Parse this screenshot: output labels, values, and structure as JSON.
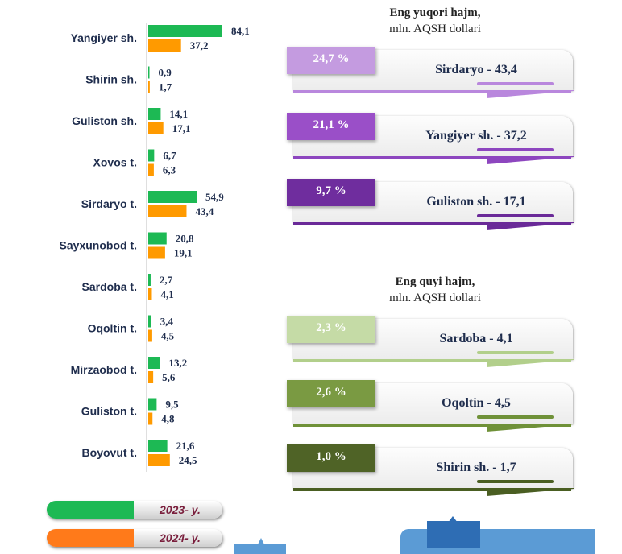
{
  "chart_data": {
    "type": "bar",
    "orientation": "horizontal",
    "categories": [
      "Yangiyer sh.",
      "Shirin sh.",
      "Guliston sh.",
      "Xovos t.",
      "Sirdaryo t.",
      "Sayxunobod t.",
      "Sardoba t.",
      "Oqoltin t.",
      "Mirzaobod t.",
      "Guliston t.",
      "Boyovut t."
    ],
    "series": [
      {
        "name": "2023- y.",
        "color": "#1db954",
        "values": [
          84.1,
          0.9,
          14.1,
          6.7,
          54.9,
          20.8,
          2.7,
          3.4,
          13.2,
          9.5,
          21.6
        ],
        "labels": [
          "84,1",
          "0,9",
          "14,1",
          "6,7",
          "54,9",
          "20,8",
          "2,7",
          "3,4",
          "13,2",
          "9,5",
          "21,6"
        ]
      },
      {
        "name": "2024- y.",
        "color": "#ff9a00",
        "values": [
          37.2,
          1.7,
          17.1,
          6.3,
          43.4,
          19.1,
          4.1,
          4.5,
          5.6,
          4.8,
          24.5
        ],
        "labels": [
          "37,2",
          "1,7",
          "17,1",
          "6,3",
          "43,4",
          "19,1",
          "4,1",
          "4,5",
          "5,6",
          "4,8",
          "24,5"
        ]
      }
    ],
    "xlim": [
      0,
      90
    ],
    "grid": false,
    "legend": "bottom-left"
  },
  "top_panel": {
    "title": "Eng yuqori hajm,",
    "unit": "mln. AQSH dollari",
    "items": [
      {
        "percent": "24,7 %",
        "label": "Sirdaryo - 43,4",
        "color": "#c49be0",
        "accent": "#b987dd"
      },
      {
        "percent": "21,1 %",
        "label": "Yangiyer sh. - 37,2",
        "color": "#9a4fc8",
        "accent": "#8d46bf"
      },
      {
        "percent": "9,7 %",
        "label": "Guliston sh.  - 17,1",
        "color": "#6f2d9e",
        "accent": "#6a2a98"
      }
    ]
  },
  "bottom_panel": {
    "title": "Eng quyi hajm,",
    "unit": "mln. AQSH dollari",
    "items": [
      {
        "percent": "2,3 %",
        "label": "Sardoba -  4,1",
        "color": "#c5dba6",
        "accent": "#b2cf8b"
      },
      {
        "percent": "2,6 %",
        "label": "Oqoltin - 4,5",
        "color": "#7a9a42",
        "accent": "#6f9138"
      },
      {
        "percent": "1,0 %",
        "label": "Shirin sh. - 1,7",
        "color": "#4f6326",
        "accent": "#4a5e22"
      }
    ]
  },
  "legend": {
    "items": [
      {
        "label": "2023- y.",
        "color": "#1db954"
      },
      {
        "label": "2024- y.",
        "color": "#ff7a1a"
      }
    ]
  }
}
